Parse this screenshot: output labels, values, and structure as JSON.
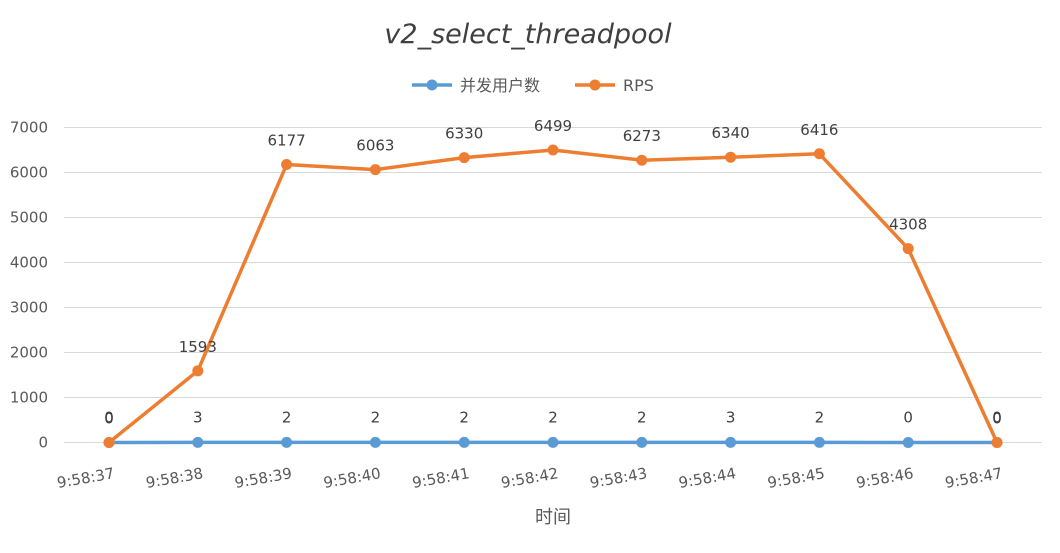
{
  "chart_data": {
    "type": "line",
    "title": "v2_select_threadpool",
    "xlabel": "时间",
    "ylabel": "",
    "ylim": [
      0,
      7000
    ],
    "yticks": [
      0,
      1000,
      2000,
      3000,
      4000,
      5000,
      6000,
      7000
    ],
    "grid": true,
    "legend_position": "top",
    "categories": [
      "9:58:37",
      "9:58:38",
      "9:58:39",
      "9:58:40",
      "9:58:41",
      "9:58:42",
      "9:58:43",
      "9:58:44",
      "9:58:45",
      "9:58:46",
      "9:58:47"
    ],
    "series": [
      {
        "name": "并发用户数",
        "color": "#5B9BD5",
        "values": [
          0,
          3,
          2,
          2,
          2,
          2,
          2,
          3,
          2,
          0,
          0
        ]
      },
      {
        "name": "RPS",
        "color": "#ED7D31",
        "values": [
          0,
          1593,
          6177,
          6063,
          6330,
          6499,
          6273,
          6340,
          6416,
          4308,
          0
        ]
      }
    ]
  }
}
